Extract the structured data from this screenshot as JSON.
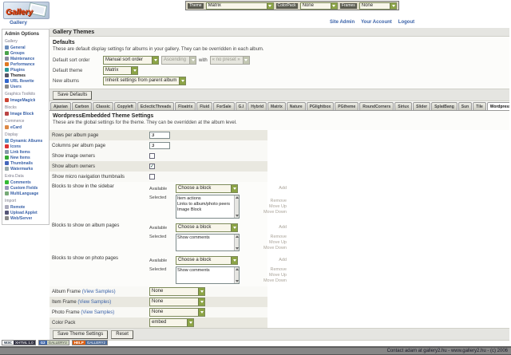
{
  "topbar": {
    "theme_label": "Theme",
    "theme_value": "Matrix",
    "colorpack_label": "ColorPack",
    "colorpack_value": "None",
    "frames_label": "Frames",
    "frames_value": "None"
  },
  "header": {
    "logo_text": "Gallery",
    "breadcrumb": "Gallery",
    "site_admin": "Site Admin",
    "your_account": "Your Account",
    "logout": "Logout"
  },
  "sidebar": {
    "title": "Admin Options",
    "groups": [
      {
        "label": "Gallery",
        "items": [
          "General",
          "Groups",
          "Maintenance",
          "Performance",
          "Plugins",
          "Themes",
          "URL Rewrite",
          "Users"
        ]
      },
      {
        "label": "Graphics Toolkits",
        "items": [
          "ImageMagick"
        ]
      },
      {
        "label": "Blocks",
        "items": [
          "Image Block"
        ]
      },
      {
        "label": "Commerce",
        "items": [
          "eCard"
        ]
      },
      {
        "label": "Display",
        "items": [
          "Dynamic Albums",
          "Icons",
          "Link Items",
          "New Items",
          "Thumbnails",
          "Watermarks"
        ]
      },
      {
        "label": "Extra Data",
        "items": [
          "Comments",
          "Custom Fields",
          "MultiLanguage"
        ]
      },
      {
        "label": "Import",
        "items": [
          "Remote",
          "Upload Applet",
          "Web/Server"
        ]
      }
    ],
    "active_item": "Themes"
  },
  "main": {
    "title": "Gallery Themes",
    "defaults": {
      "heading": "Defaults",
      "desc": "These are default display settings for albums in your gallery. They can be overridden in each album.",
      "sort_label": "Default sort order",
      "sort_value": "Manual sort order",
      "order_value": "Ascending",
      "with_text": "with",
      "preset_value": "« no preset »",
      "theme_label": "Default theme",
      "theme_value": "Matrix",
      "albums_label": "New albums",
      "albums_value": "Inherit settings from parent album",
      "save_button": "Save Defaults"
    },
    "tabs": [
      "Ajaxian",
      "Carbon",
      "Classic",
      "Copyleft",
      "EclecticThreads",
      "Floatrix",
      "Fluid",
      "ForSale",
      "G.I",
      "Hybrid",
      "Matrix",
      "Nature",
      "PGlightbox",
      "PGtheme",
      "RoundCorners",
      "Siriux",
      "Slider",
      "SplatBang",
      "Sun",
      "Tile",
      "WordpressEmbedded"
    ],
    "active_tab": "WordpressEmbedded",
    "settings": {
      "heading": "WordpressEmbedded Theme Settings",
      "desc": "These are the global settings for the theme. They can be overridden at the album level.",
      "rows_label": "Rows per album page",
      "rows_value": "3",
      "cols_label": "Columns per album page",
      "cols_value": "3",
      "show_image_owners": "Show image owners",
      "show_album_owners": "Show album owners",
      "album_owners_check": "✓",
      "show_micro_nav": "Show micro navigation thumbnails",
      "available_label": "Available",
      "selected_label": "Selected",
      "choose_block": "Choose a block",
      "add_label": "Add",
      "remove_label": "Remove",
      "move_up_label": "Move Up",
      "move_down_label": "Move Down",
      "blocks_sidebar_label": "Blocks to show in the sidebar",
      "blocks_sidebar_items": [
        "Item actions",
        "Links to album/photo peers",
        "Image Block"
      ],
      "blocks_album_label": "Blocks to show on album pages",
      "blocks_album_items": [
        "Show comments"
      ],
      "blocks_photo_label": "Blocks to show on photo pages",
      "blocks_photo_items": [
        "Show comments"
      ],
      "album_frame_label": "Album Frame",
      "item_frame_label": "Item Frame",
      "photo_frame_label": "Photo Frame",
      "view_samples": "(View Samples)",
      "album_frame_value": "None",
      "item_frame_value": "None",
      "photo_frame_value": "None",
      "color_pack_label": "Color Pack",
      "color_pack_value": "embed",
      "save_button": "Save Theme Settings",
      "reset_button": "Reset"
    }
  },
  "badges": {
    "b1_left": "W3C",
    "b1_right": "XHTML 1.0",
    "b2_left": "G2",
    "b2_right": "GALLERY2",
    "b3_left": "HELP",
    "b3_right": "GALLERY2"
  },
  "footer": {
    "text": "Contact adam at gallery2.hu - www.gallery2.hu - (c) 2006"
  }
}
